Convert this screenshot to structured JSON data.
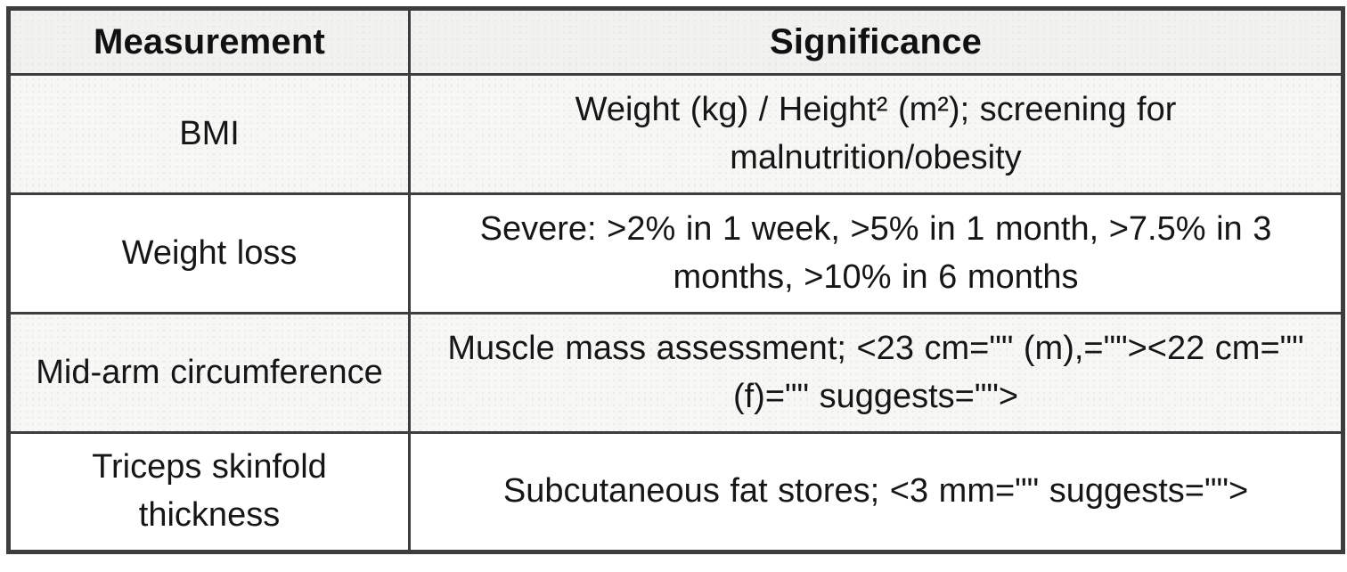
{
  "table": {
    "columns": [
      {
        "label": "Measurement"
      },
      {
        "label": "Significance"
      }
    ],
    "rows": [
      {
        "measurement": "BMI",
        "significance": "Weight (kg) / Height² (m²); screening for malnutrition/obesity"
      },
      {
        "measurement": "Weight loss",
        "significance": "Severe: >2% in 1 week, >5% in 1 month, >7.5% in 3 months, >10% in 6 months"
      },
      {
        "measurement": "Mid-arm circumference",
        "significance": "Muscle mass assessment; <23 cm=\"\" (m),=\"\"><22 cm=\"\" (f)=\"\" suggests=\"\">"
      },
      {
        "measurement": "Triceps skinfold thickness",
        "significance": "Subcutaneous fat stores; <3 mm=\"\" suggests=\"\">"
      }
    ],
    "colors": {
      "border": "#3d3d3d",
      "header_bg": "#f1f1ef",
      "stripe_bg": "#f7f7f5",
      "row_bg": "#ffffff",
      "text": "#161616"
    }
  }
}
